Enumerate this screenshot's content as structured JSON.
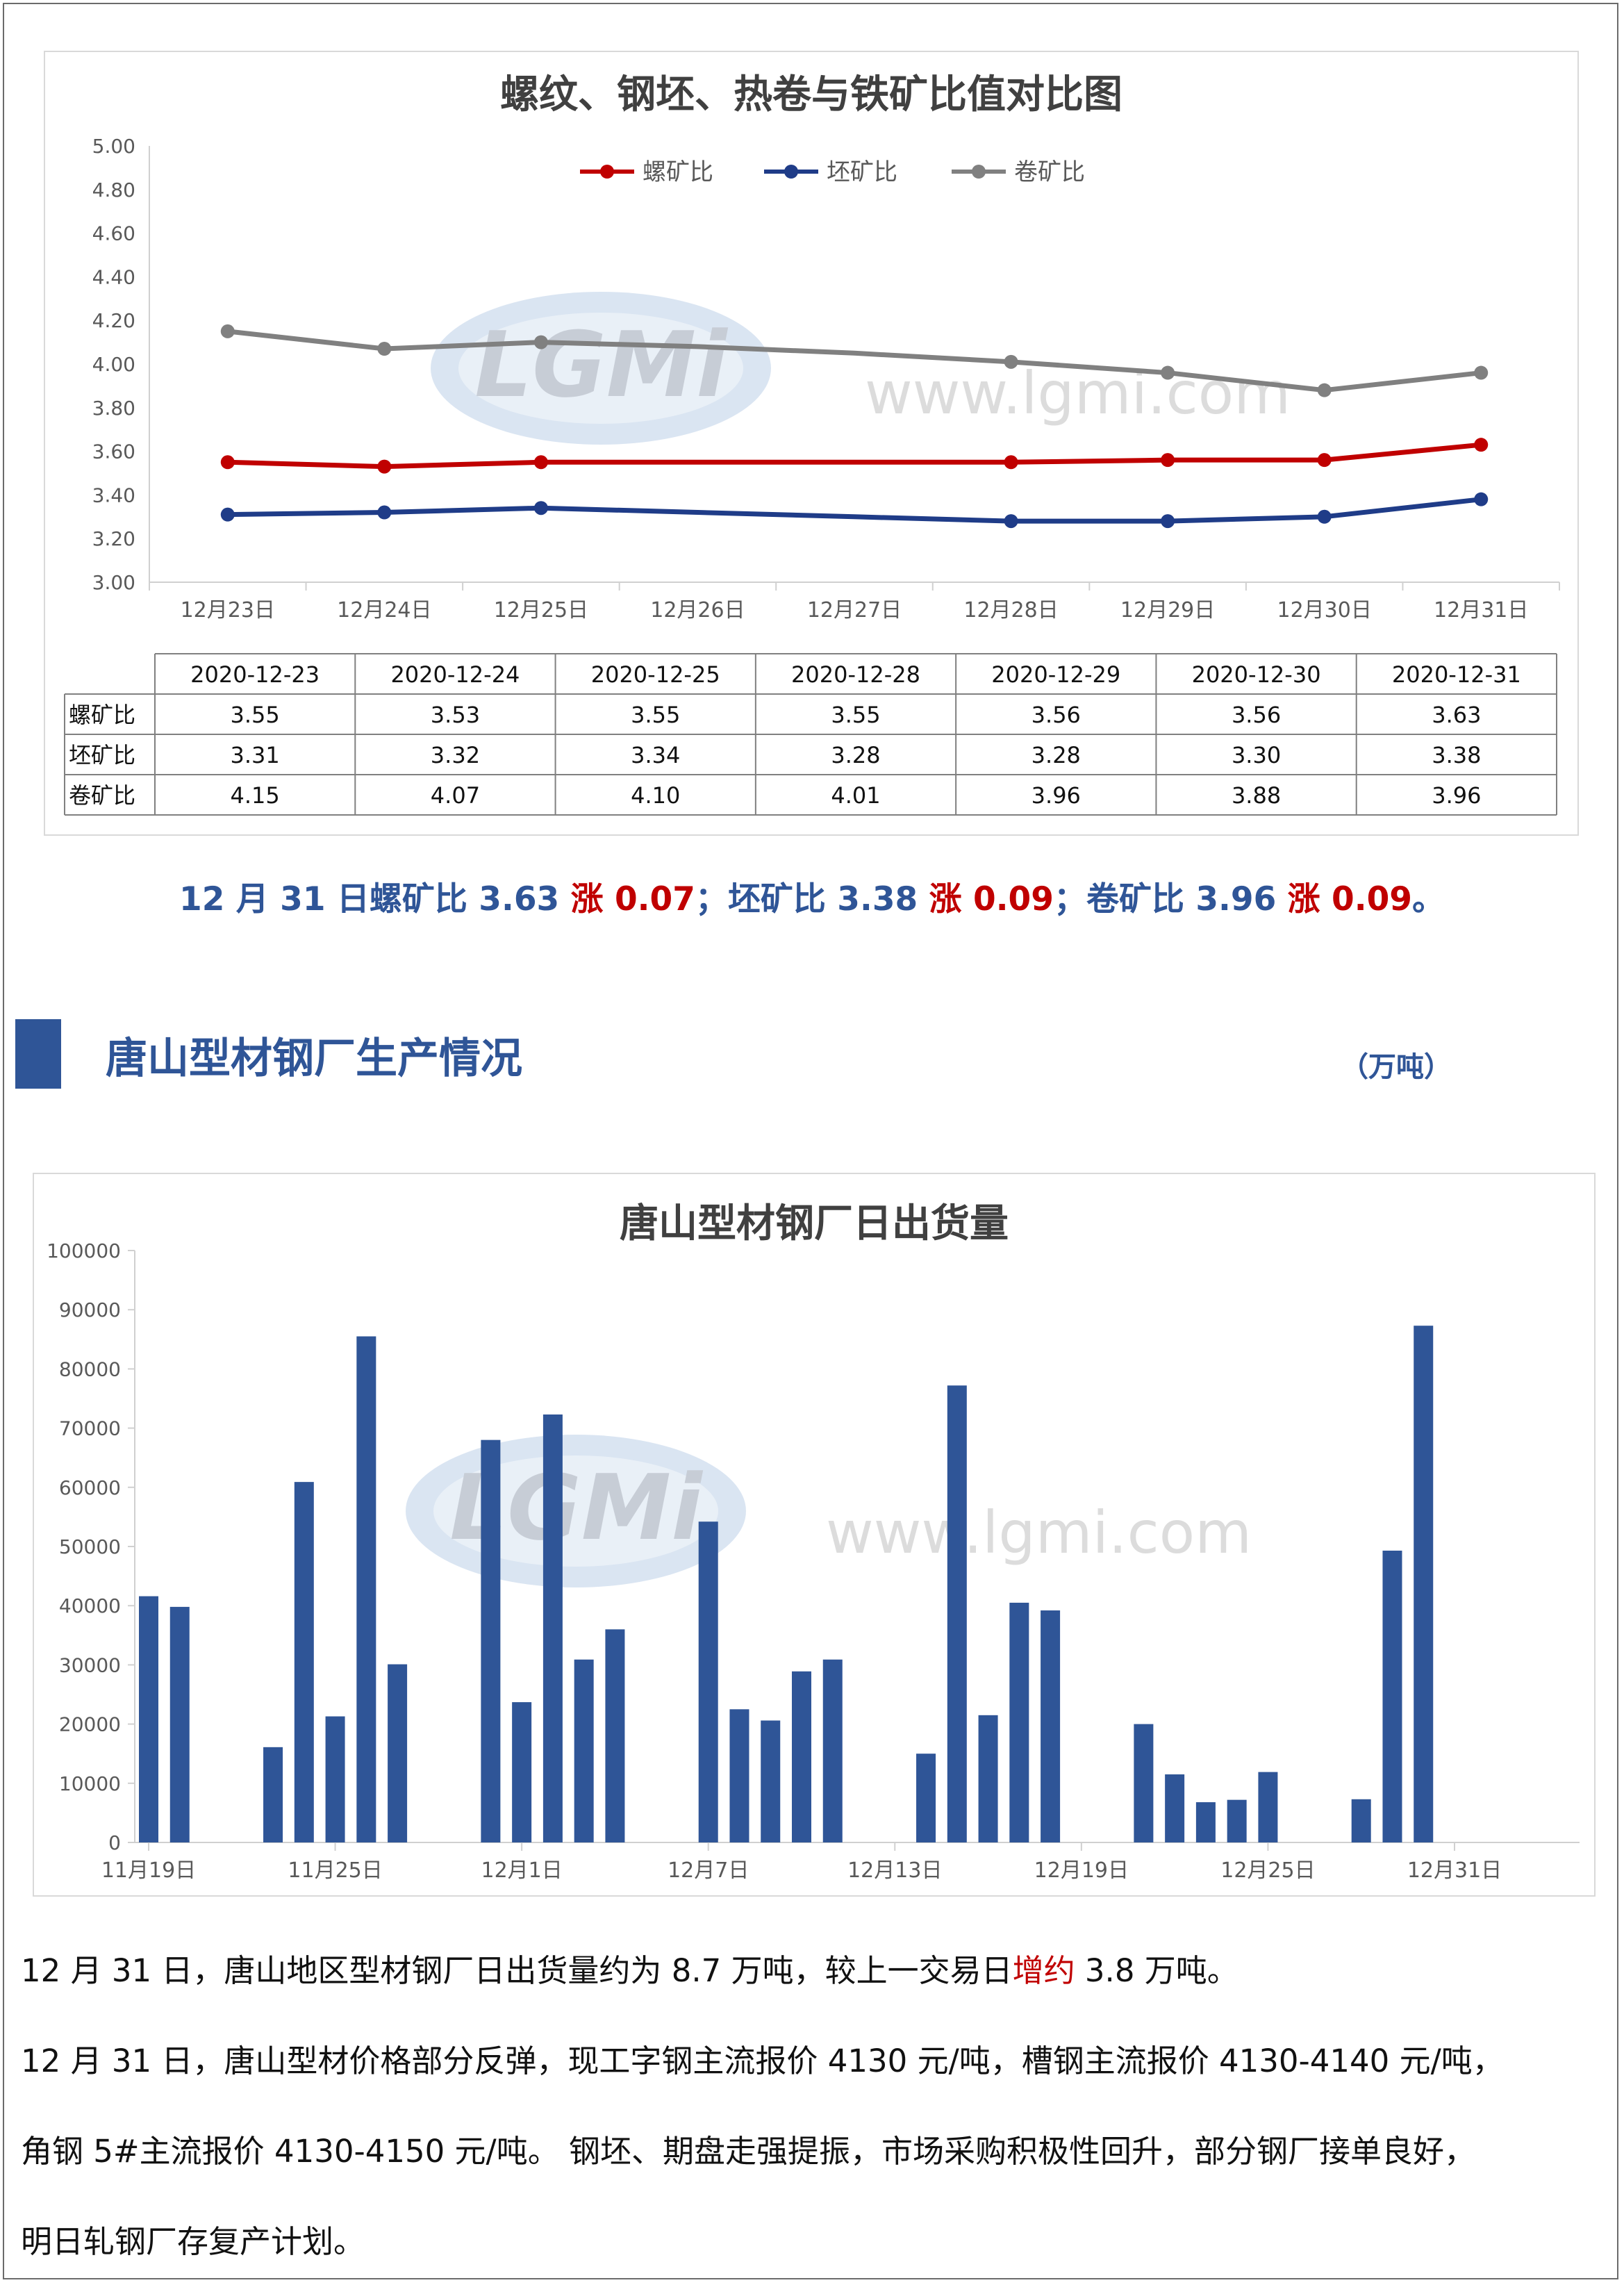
{
  "colors": {
    "luo": "#c00000",
    "pi": "#1f3c88",
    "juan": "#808080",
    "bar": "#2f5597",
    "accent_blue": "#2f5597",
    "accent_red": "#c00000"
  },
  "watermark": {
    "logo": "LGMi",
    "url": "www.lgmi.com"
  },
  "chart_data": [
    {
      "type": "line",
      "title": "螺纹、钢坯、热卷与铁矿比值对比图",
      "legend_position": "top",
      "categories": [
        "12月23日",
        "12月24日",
        "12月25日",
        "12月26日",
        "12月27日",
        "12月28日",
        "12月29日",
        "12月30日",
        "12月31日"
      ],
      "ylim": [
        3.0,
        5.0
      ],
      "yticks": [
        "5.00",
        "4.80",
        "4.60",
        "4.40",
        "4.20",
        "4.00",
        "3.80",
        "3.60",
        "3.40",
        "3.20",
        "3.00"
      ],
      "grid": false,
      "series": [
        {
          "name": "螺矿比",
          "color": "#c00000",
          "values": [
            3.55,
            3.53,
            3.55,
            3.55,
            3.55,
            3.55,
            3.56,
            3.56,
            3.63
          ],
          "markers": [
            true,
            true,
            true,
            false,
            false,
            true,
            true,
            true,
            true
          ]
        },
        {
          "name": "坯矿比",
          "color": "#1f3c88",
          "values": [
            3.31,
            3.32,
            3.34,
            3.32,
            3.3,
            3.28,
            3.28,
            3.3,
            3.38
          ],
          "markers": [
            true,
            true,
            true,
            false,
            false,
            true,
            true,
            true,
            true
          ]
        },
        {
          "name": "卷矿比",
          "color": "#808080",
          "values": [
            4.15,
            4.07,
            4.1,
            4.08,
            4.05,
            4.01,
            3.96,
            3.88,
            3.96
          ],
          "markers": [
            true,
            true,
            true,
            false,
            false,
            true,
            true,
            true,
            true
          ]
        }
      ]
    },
    {
      "type": "table",
      "columns": [
        "2020-12-23",
        "2020-12-24",
        "2020-12-25",
        "2020-12-28",
        "2020-12-29",
        "2020-12-30",
        "2020-12-31"
      ],
      "rows": [
        {
          "label": "螺矿比",
          "values": [
            "3.55",
            "3.53",
            "3.55",
            "3.55",
            "3.56",
            "3.56",
            "3.63"
          ]
        },
        {
          "label": "坯矿比",
          "values": [
            "3.31",
            "3.32",
            "3.34",
            "3.28",
            "3.28",
            "3.30",
            "3.38"
          ]
        },
        {
          "label": "卷矿比",
          "values": [
            "4.15",
            "4.07",
            "4.10",
            "4.01",
            "3.96",
            "3.88",
            "3.96"
          ]
        }
      ]
    },
    {
      "type": "bar",
      "title": "唐山型材钢厂日出货量",
      "ylim": [
        0,
        100000
      ],
      "yticks": [
        "100000",
        "90000",
        "80000",
        "70000",
        "60000",
        "50000",
        "40000",
        "30000",
        "20000",
        "10000",
        "0"
      ],
      "x_tick_labels": [
        "11月19日",
        "11月25日",
        "12月1日",
        "12月7日",
        "12月13日",
        "12月19日",
        "12月25日",
        "12月31日"
      ],
      "x_tick_days": [
        0,
        6,
        12,
        18,
        24,
        30,
        36,
        42
      ],
      "x_day_range": [
        0,
        42
      ],
      "bars": [
        {
          "day": 0,
          "value": 41600
        },
        {
          "day": 1,
          "value": 39800
        },
        {
          "day": 4,
          "value": 16100
        },
        {
          "day": 5,
          "value": 60900
        },
        {
          "day": 6,
          "value": 21300
        },
        {
          "day": 7,
          "value": 85500
        },
        {
          "day": 8,
          "value": 30100
        },
        {
          "day": 11,
          "value": 68000
        },
        {
          "day": 12,
          "value": 23700
        },
        {
          "day": 13,
          "value": 72300
        },
        {
          "day": 14,
          "value": 30900
        },
        {
          "day": 15,
          "value": 36000
        },
        {
          "day": 18,
          "value": 54200
        },
        {
          "day": 19,
          "value": 22500
        },
        {
          "day": 20,
          "value": 20600
        },
        {
          "day": 21,
          "value": 28900
        },
        {
          "day": 22,
          "value": 30900
        },
        {
          "day": 25,
          "value": 15000
        },
        {
          "day": 26,
          "value": 77200
        },
        {
          "day": 27,
          "value": 21500
        },
        {
          "day": 28,
          "value": 40500
        },
        {
          "day": 29,
          "value": 39200
        },
        {
          "day": 32,
          "value": 20000
        },
        {
          "day": 33,
          "value": 11500
        },
        {
          "day": 34,
          "value": 6800
        },
        {
          "day": 35,
          "value": 7200
        },
        {
          "day": 36,
          "value": 11900
        },
        {
          "day": 39,
          "value": 7300
        },
        {
          "day": 40,
          "value": 49300
        },
        {
          "day": 41,
          "value": 87300
        }
      ]
    }
  ],
  "summary": {
    "part1": "12 月 31 日螺矿比 3.63 ",
    "up1": "涨 0.07",
    "part2": "；坯矿比 3.38 ",
    "up2": "涨 0.09",
    "part3": "；卷矿比 3.96 ",
    "up3": "涨 0.09",
    "end": "。"
  },
  "section": {
    "title": "唐山型材钢厂生产情况",
    "unit": "（万吨）"
  },
  "paragraphs": {
    "p1_a": "12 月 31 日，唐山地区型材钢厂日出货量约为 8.7 万吨，较上一交易日",
    "p1_red": "增约",
    "p1_b": " 3.8 万吨。",
    "p2": "12 月 31 日，唐山型材价格部分反弹，现工字钢主流报价 4130 元/吨，槽钢主流报价 4130-4140 元/吨，",
    "p3": "角钢 5#主流报价 4130-4150 元/吨。  钢坯、期盘走强提振，市场采购积极性回升，部分钢厂接单良好，",
    "p4": "明日轧钢厂存复产计划。"
  }
}
